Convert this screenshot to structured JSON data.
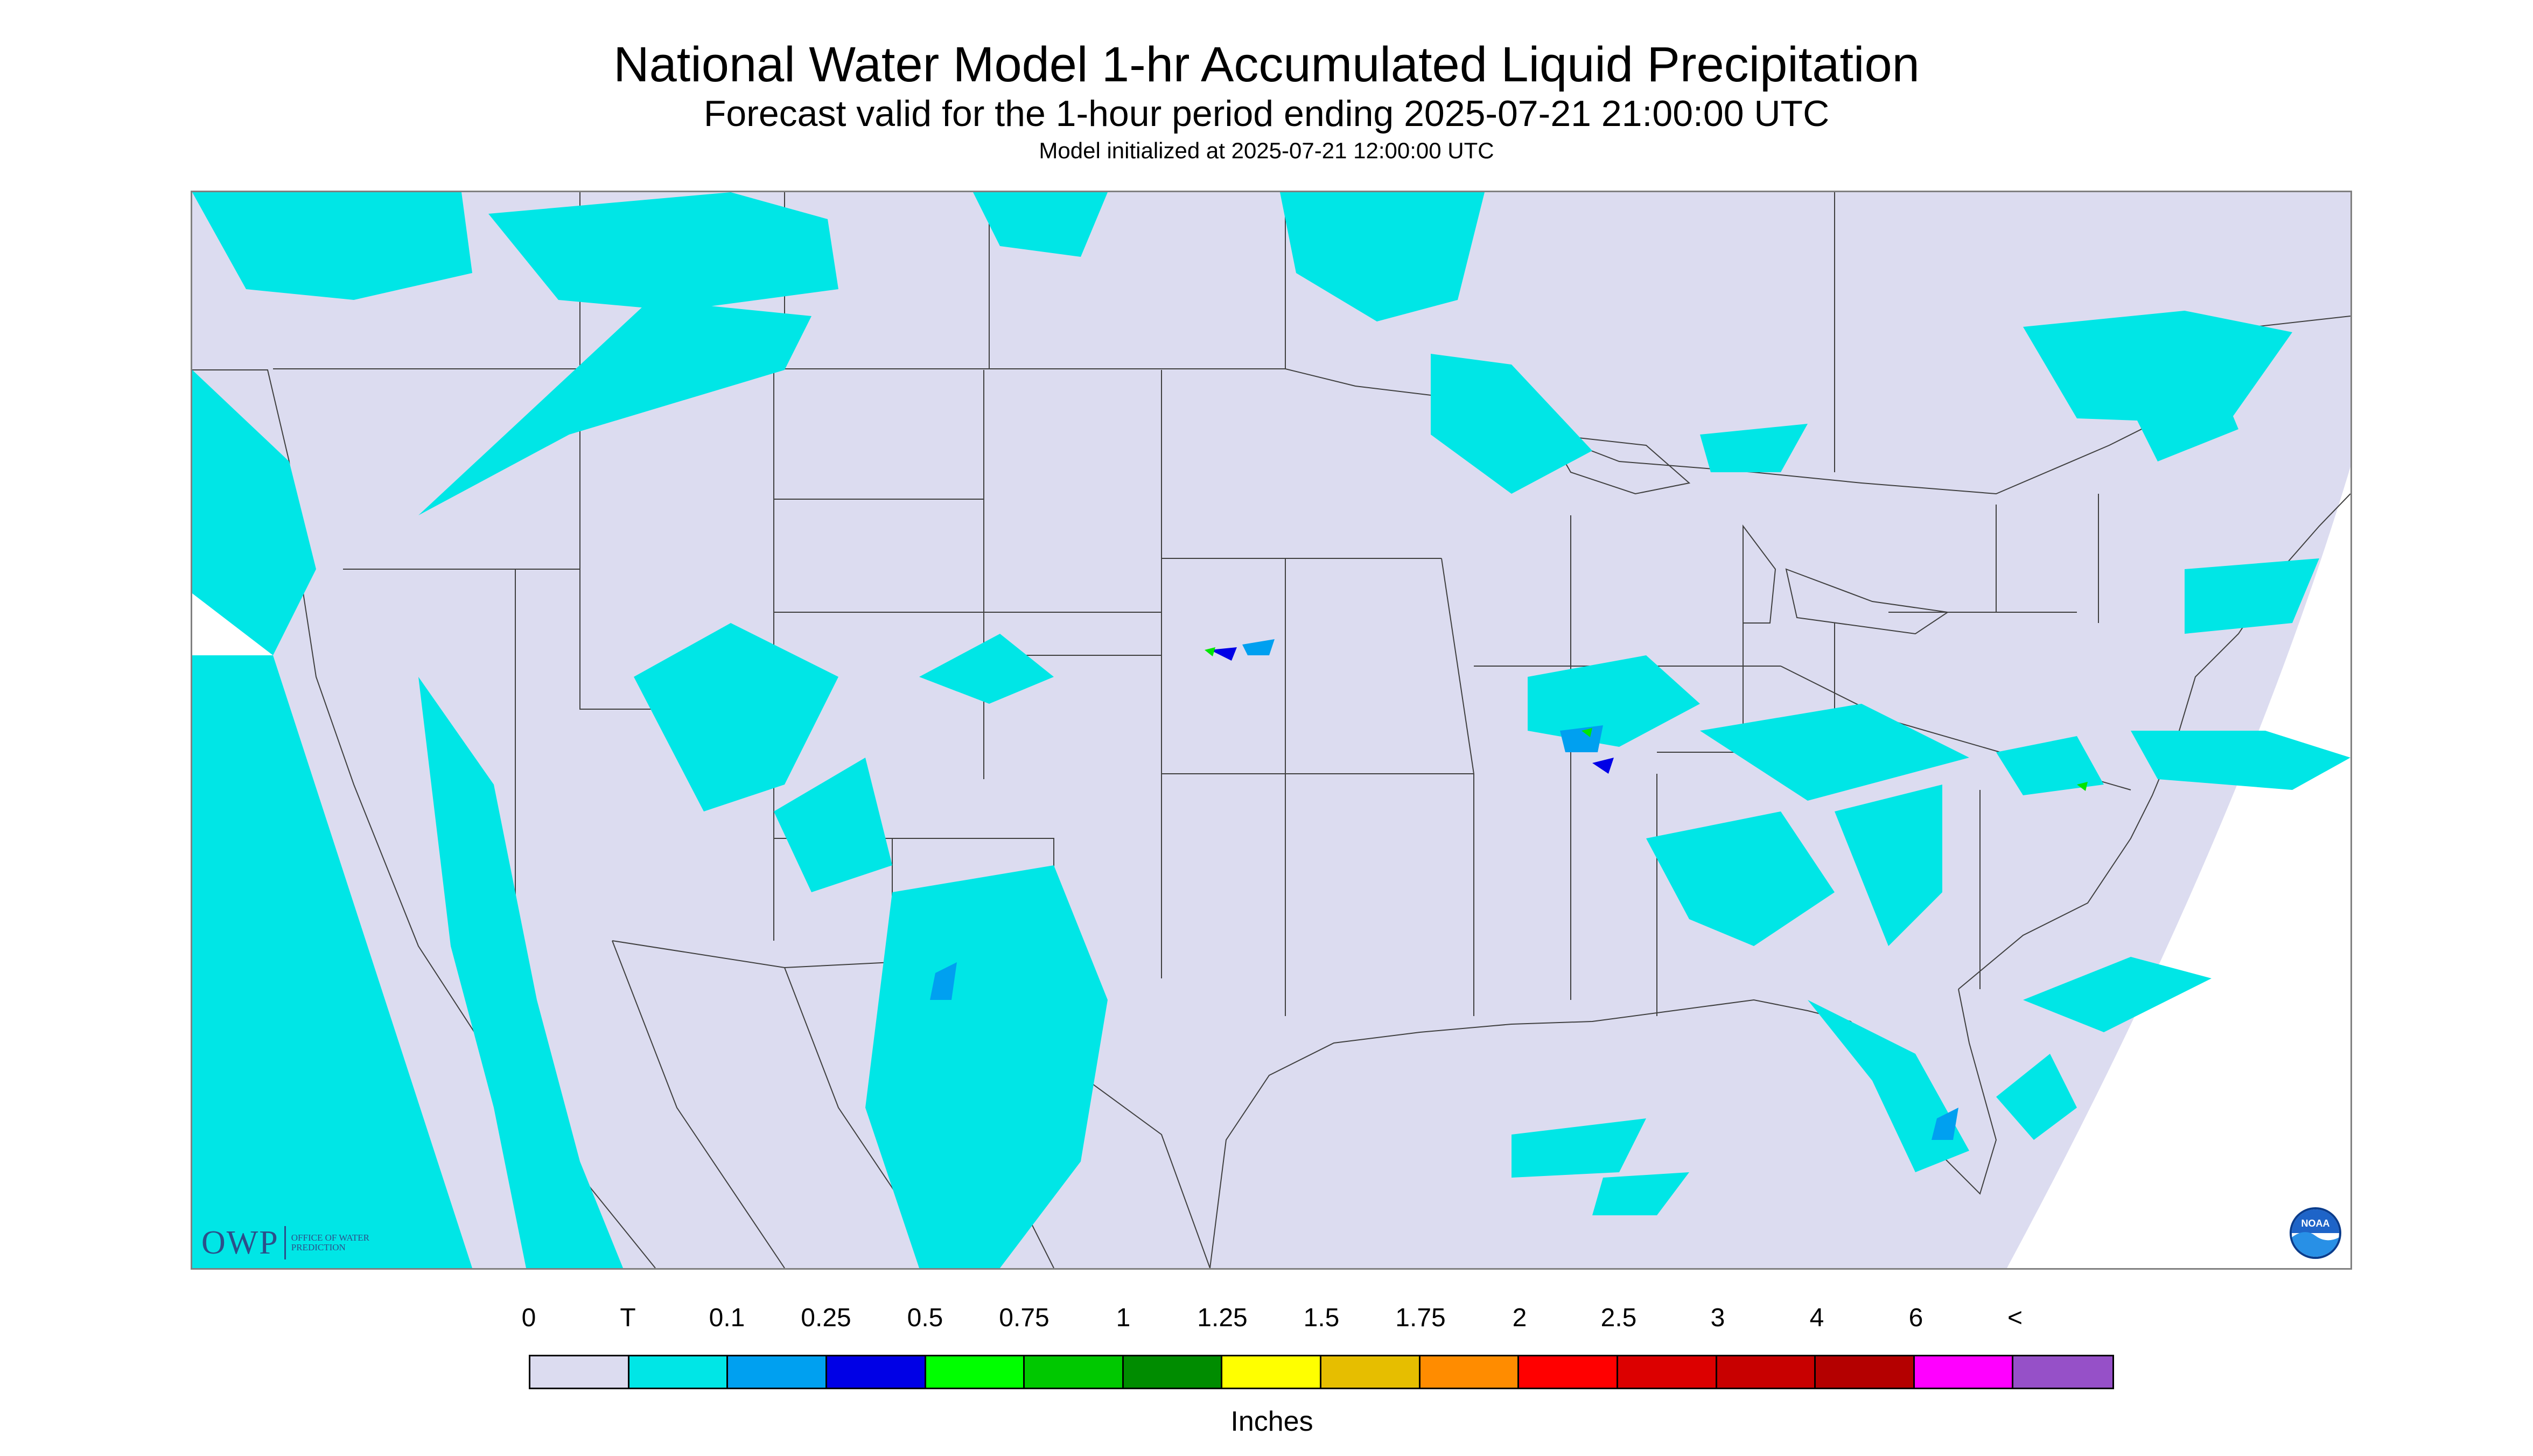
{
  "title": "National Water Model 1-hr Accumulated Liquid Precipitation",
  "subtitle": "Forecast valid for the 1-hour period ending 2025-07-21 21:00:00 UTC",
  "init_line": "Model initialized at 2025-07-21 12:00:00 UTC",
  "map": {
    "background_color": "#dcdcf0",
    "outside_domain_color": "#ffffff",
    "boundary_color": "#404040",
    "precip_colors": {
      "trace": "#00e6e6",
      "light": "#00a0f0",
      "moderate": "#0000e6",
      "heavy": "#00e600"
    }
  },
  "logos": {
    "owp_text": "OWP",
    "owp_subtext": "OFFICE OF WATER PREDICTION",
    "noaa_text": "NOAA"
  },
  "legend": {
    "unit": "Inches",
    "labels": [
      "0",
      "T",
      "0.1",
      "0.25",
      "0.5",
      "0.75",
      "1",
      "1.25",
      "1.5",
      "1.75",
      "2",
      "2.5",
      "3",
      "4",
      "6",
      "<"
    ],
    "colors": [
      "#dcdcf0",
      "#00e6e6",
      "#00a0f0",
      "#0000e6",
      "#00ff00",
      "#00c800",
      "#008c00",
      "#ffff00",
      "#e6be00",
      "#ff8c00",
      "#ff0000",
      "#dc0000",
      "#c80000",
      "#b40000",
      "#ff00ff",
      "#9650c8"
    ]
  }
}
